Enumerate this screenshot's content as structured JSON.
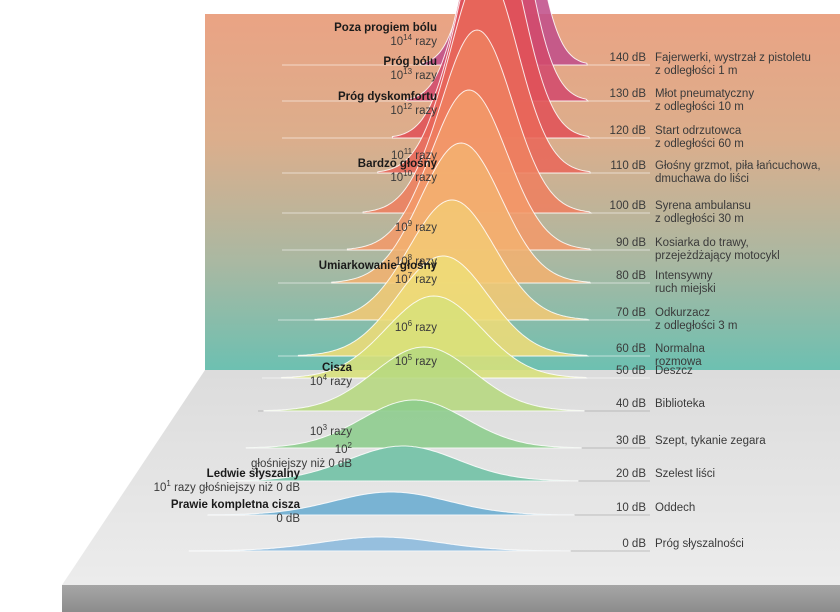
{
  "levels": [
    {
      "db": "140 dB",
      "desc1": "Fajerwerki, wystrzał z pistoletu",
      "desc2": "z odległości 1 m",
      "title": "Poza progiem bólu",
      "base": "10",
      "exp": "14",
      "unit": "razy",
      "color": "#c0508a"
    },
    {
      "db": "130 dB",
      "desc1": "Młot pneumatyczny",
      "desc2": "z odległości 10 m",
      "title": "Próg bólu",
      "base": "10",
      "exp": "13",
      "unit": "razy",
      "color": "#d24a6c"
    },
    {
      "db": "120 dB",
      "desc1": "Start odrzutowca",
      "desc2": "z odległości 60 m",
      "title": "Próg dyskomfortu",
      "base": "10",
      "exp": "12",
      "unit": "razy",
      "color": "#e05258"
    },
    {
      "db": "110 dB",
      "desc1": "Głośny grzmot, piła łańcuchowa,",
      "desc2": "dmuchawa do liści",
      "title": "",
      "base": "10",
      "exp": "11",
      "unit": "razy",
      "color": "#e8685a"
    },
    {
      "db": "100 dB",
      "desc1": "Syrena ambulansu",
      "desc2": "z odległości 30 m",
      "title": "Bardzo głośny",
      "base": "10",
      "exp": "10",
      "unit": "razy",
      "color": "#ee8060"
    },
    {
      "db": "90 dB",
      "desc1": "Kosiarka do trawy,",
      "desc2": "przejeżdżający motocykl",
      "title": "",
      "base": "10",
      "exp": "9",
      "unit": "razy",
      "color": "#f29a6a"
    },
    {
      "db": "80 dB",
      "desc1": "Intensywny",
      "desc2": "ruch miejski",
      "title": "",
      "base": "10",
      "exp": "8",
      "unit": "razy",
      "color": "#f3b070"
    },
    {
      "db": "70 dB",
      "desc1": "Odkurzacz",
      "desc2": "z odległości 3 m",
      "title": "Umiarkowanie głośny",
      "base": "10",
      "exp": "7",
      "unit": "razy",
      "color": "#f2c874"
    },
    {
      "db": "60 dB",
      "desc1": "Normalna",
      "desc2": "rozmowa",
      "title": "",
      "base": "10",
      "exp": "6",
      "unit": "razy",
      "color": "#eedc78"
    },
    {
      "db": "50 dB",
      "desc1": "Deszcz",
      "desc2": "",
      "title": "",
      "base": "10",
      "exp": "5",
      "unit": "razy",
      "color": "#d8e07a"
    },
    {
      "db": "40 dB",
      "desc1": "Biblioteka",
      "desc2": "",
      "title": "Cisza",
      "base": "10",
      "exp": "4",
      "unit": "razy",
      "color": "#b6d880"
    },
    {
      "db": "30 dB",
      "desc1": "Szept, tykanie zegara",
      "desc2": "",
      "title": "",
      "base": "10",
      "exp": "3",
      "unit": "razy",
      "color": "#8ccc8c"
    },
    {
      "db": "20 dB",
      "desc1": "Szelest liści",
      "desc2": "",
      "title": "",
      "base": "10",
      "exp": "2",
      "unit": "głośniejszy niż 0 dB",
      "color": "#6ec0a4"
    },
    {
      "db": "10 dB",
      "desc1": "Oddech",
      "desc2": "",
      "title": "Ledwie słyszalny",
      "base": "10",
      "exp": "1",
      "unit": "razy głośniejszy niż 0 dB",
      "color": "#6aacd0"
    },
    {
      "db": "0 dB",
      "desc1": "Próg słyszalności",
      "desc2": "",
      "title": "Prawie kompletna cisza",
      "base": "0 dB",
      "exp": "",
      "unit": "",
      "color": "#8ab8dc"
    }
  ],
  "colors": {
    "bg_top": "#e9a383",
    "bg_bottom": "#70bfb0",
    "floor": "#e6e6e6",
    "floor_edge": "#9a9a9a"
  }
}
